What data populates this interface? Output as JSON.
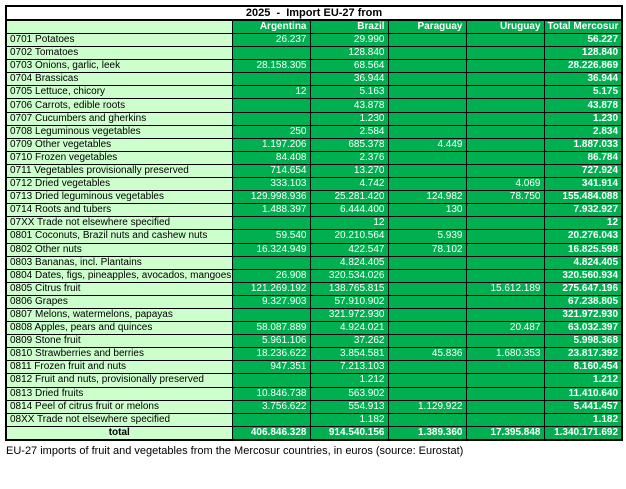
{
  "title": "2025  -  Import EU-27 from",
  "colors": {
    "cell_green": "#00B050",
    "label_light_green": "#CCFFCC",
    "border": "#000000",
    "text_on_green": "#FFFFFF",
    "text_on_light": "#000000"
  },
  "table": {
    "columns": [
      "Argentina",
      "Brazil",
      "Paraguay",
      "Uruguay",
      "Total Mercosur"
    ],
    "rows": [
      {
        "label": "0701 Potatoes",
        "values": [
          "26.237",
          "29.990",
          "",
          "",
          "56.227"
        ]
      },
      {
        "label": "0702 Tomatoes",
        "values": [
          "",
          "128.840",
          "",
          "",
          "128.840"
        ]
      },
      {
        "label": "0703 Onions, garlic, leek",
        "values": [
          "28.158.305",
          "68.564",
          "",
          "",
          "28.226.869"
        ]
      },
      {
        "label": "0704 Brassicas",
        "values": [
          "",
          "36.944",
          "",
          "",
          "36.944"
        ]
      },
      {
        "label": "0705 Lettuce, chicory",
        "values": [
          "12",
          "5.163",
          "",
          "",
          "5.175"
        ]
      },
      {
        "label": "0706 Carrots, edible roots",
        "values": [
          "",
          "43.878",
          "",
          "",
          "43.878"
        ]
      },
      {
        "label": "0707 Cucumbers and gherkins",
        "values": [
          "",
          "1.230",
          "",
          "",
          "1.230"
        ]
      },
      {
        "label": "0708 Leguminous vegetables",
        "values": [
          "250",
          "2.584",
          "",
          "",
          "2.834"
        ]
      },
      {
        "label": "0709 Other vegetables",
        "values": [
          "1.197.206",
          "685.378",
          "4.449",
          "",
          "1.887.033"
        ]
      },
      {
        "label": "0710 Frozen vegetables",
        "values": [
          "84.408",
          "2.376",
          "",
          "",
          "86.784"
        ]
      },
      {
        "label": "0711 Vegetables provisionally preserved",
        "values": [
          "714.654",
          "13.270",
          "",
          "",
          "727.924"
        ]
      },
      {
        "label": "0712 Dried vegetables",
        "values": [
          "333.103",
          "4.742",
          "",
          "4.069",
          "341.914"
        ]
      },
      {
        "label": "0713 Dried leguminous vegetables",
        "values": [
          "129.998.936",
          "25.281.420",
          "124.982",
          "78.750",
          "155.484.088"
        ]
      },
      {
        "label": "0714 Roots and tubers",
        "values": [
          "1.488.397",
          "6.444.400",
          "130",
          "",
          "7.932.927"
        ]
      },
      {
        "label": "07XX Trade not elsewhere specified",
        "values": [
          "",
          "12",
          "",
          "",
          "12"
        ]
      },
      {
        "label": "0801 Coconuts, Brazil nuts and cashew nuts",
        "values": [
          "59.540",
          "20.210.564",
          "5.939",
          "",
          "20.276.043"
        ]
      },
      {
        "label": "0802 Other nuts",
        "values": [
          "16.324.949",
          "422.547",
          "78.102",
          "",
          "16.825.598"
        ]
      },
      {
        "label": "0803 Bananas, incl. Plantains",
        "values": [
          "",
          "4.824.405",
          "",
          "",
          "4.824.405"
        ]
      },
      {
        "label": "0804 Dates, figs, pineapples, avocados, mangoes",
        "values": [
          "26.908",
          "320.534.026",
          "",
          "",
          "320.560.934"
        ]
      },
      {
        "label": "0805 Citrus fruit",
        "values": [
          "121.269.192",
          "138.765.815",
          "",
          "15.612.189",
          "275.647.196"
        ]
      },
      {
        "label": "0806 Grapes",
        "values": [
          "9.327.903",
          "57.910.902",
          "",
          "",
          "67.238.805"
        ]
      },
      {
        "label": "0807 Melons, watermelons, papayas",
        "values": [
          "",
          "321.972.930",
          "",
          "",
          "321.972.930"
        ]
      },
      {
        "label": "0808 Apples, pears and quinces",
        "values": [
          "58.087.889",
          "4.924.021",
          "",
          "20.487",
          "63.032.397"
        ]
      },
      {
        "label": "0809 Stone fruit",
        "values": [
          "5.961.106",
          "37.262",
          "",
          "",
          "5.998.368"
        ]
      },
      {
        "label": "0810 Strawberries and berries",
        "values": [
          "18.236.622",
          "3.854.581",
          "45.836",
          "1.680.353",
          "23.817.392"
        ]
      },
      {
        "label": "0811 Frozen fruit and nuts",
        "values": [
          "947.351",
          "7.213.103",
          "",
          "",
          "8.160.454"
        ]
      },
      {
        "label": "0812 Fruit and nuts, provisionally preserved",
        "values": [
          "",
          "1.212",
          "",
          "",
          "1.212"
        ]
      },
      {
        "label": "0813 Dried fruits",
        "values": [
          "10.846.738",
          "563.902",
          "",
          "",
          "11.410.640"
        ]
      },
      {
        "label": "0814 Peel of citrus fruit or melons",
        "values": [
          "3.756.622",
          "554.913",
          "1.129.922",
          "",
          "5.441.457"
        ]
      },
      {
        "label": "08XX Trade not elsewhere specified",
        "values": [
          "",
          "1.182",
          "",
          "",
          "1.182"
        ]
      }
    ],
    "total": {
      "label": "total",
      "values": [
        "406.846.328",
        "914.540.156",
        "1.389.360",
        "17.395.848",
        "1.340.171.692"
      ]
    }
  },
  "caption": "EU-27 imports of fruit and vegetables from the Mercosur countries, in euros (source: Eurostat)"
}
